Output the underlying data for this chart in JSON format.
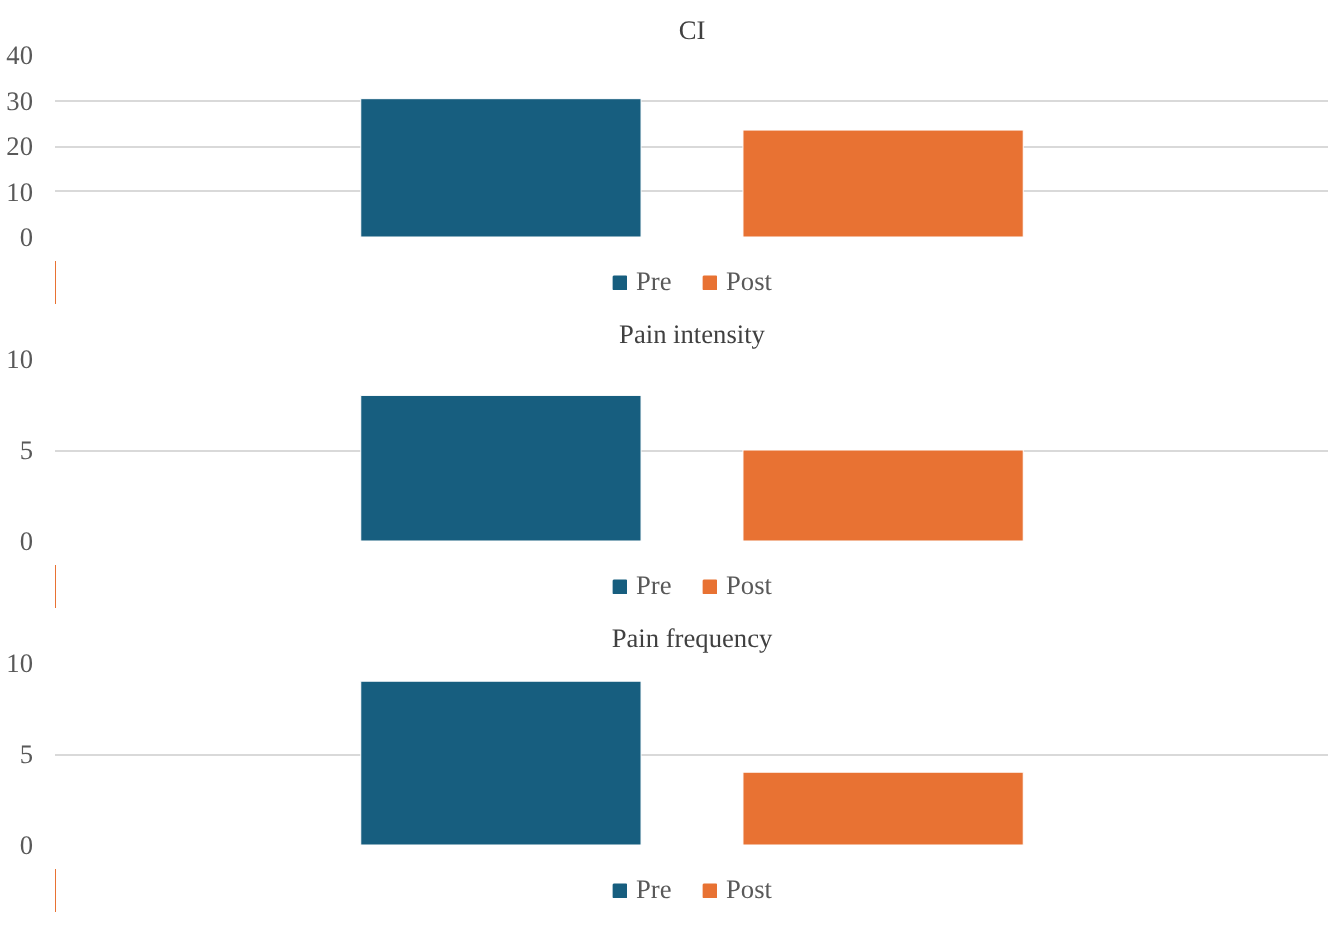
{
  "chart_data": [
    {
      "type": "bar",
      "title": "CI",
      "categories": [
        null
      ],
      "series": [
        {
          "name": "Pre",
          "color": "#175e7f",
          "values": [
            30.4
          ]
        },
        {
          "name": "Post",
          "color": "#e87233",
          "values": [
            23.5
          ]
        }
      ],
      "ylim": [
        0,
        40
      ],
      "yticks": [
        0,
        10,
        20,
        30,
        40
      ],
      "grid": "y",
      "legend": "bottom"
    },
    {
      "type": "bar",
      "title": "Pain intensity",
      "categories": [
        null
      ],
      "series": [
        {
          "name": "Pre",
          "color": "#175e7f",
          "values": [
            8
          ]
        },
        {
          "name": "Post",
          "color": "#e87233",
          "values": [
            5
          ]
        }
      ],
      "ylim": [
        0,
        10
      ],
      "yticks": [
        0,
        5,
        10
      ],
      "grid": "y",
      "legend": "bottom"
    },
    {
      "type": "bar",
      "title": "Pain frequency",
      "categories": [
        null
      ],
      "series": [
        {
          "name": "Pre",
          "color": "#175e7f",
          "values": [
            9
          ]
        },
        {
          "name": "Post",
          "color": "#e87233",
          "values": [
            4
          ]
        }
      ],
      "ylim": [
        0,
        10
      ],
      "yticks": [
        0,
        5,
        10
      ],
      "grid": "y",
      "legend": "bottom"
    }
  ]
}
